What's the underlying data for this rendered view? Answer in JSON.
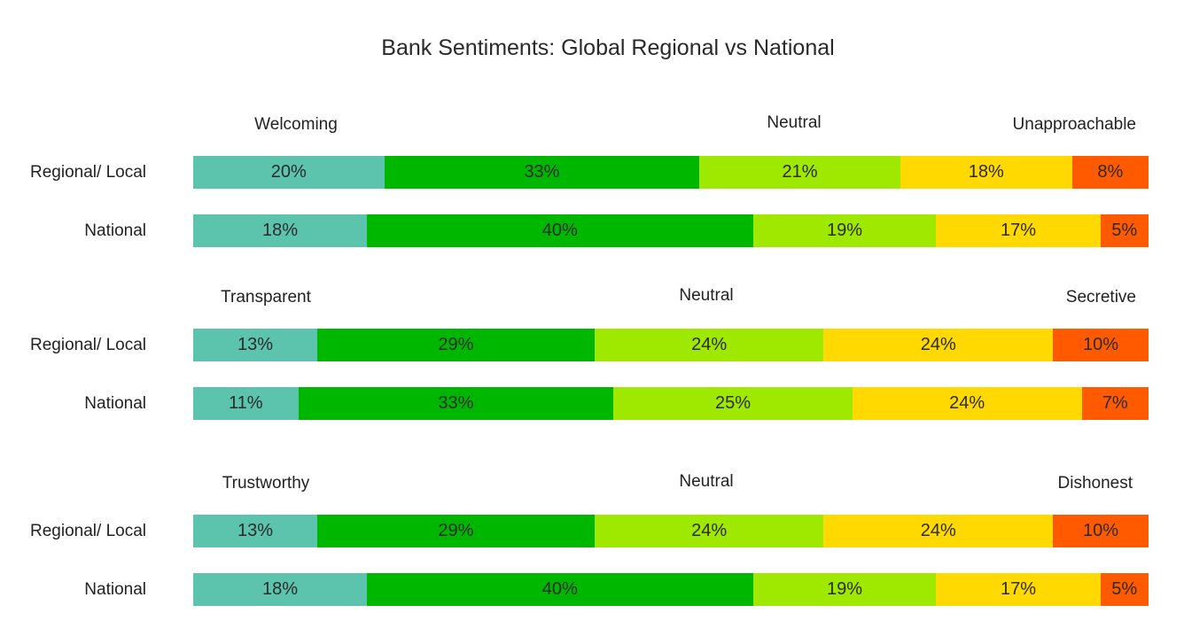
{
  "chart_data": {
    "type": "bar",
    "orientation": "horizontal",
    "stacked": true,
    "normalized": true,
    "title": "Bank Sentiments: Global Regional vs National",
    "colors": [
      "#5cc3ac",
      "#00b700",
      "#9fe800",
      "#ffd900",
      "#ff5a00"
    ],
    "panels": [
      {
        "scale_labels": {
          "left": "Welcoming",
          "middle": "Neutral",
          "right": "Unapproachable"
        },
        "rows": [
          {
            "label": "Regional/ Local",
            "values": [
              20,
              33,
              21,
              18,
              8
            ],
            "labels": [
              "20%",
              "33%",
              "21%",
              "18%",
              "8%"
            ]
          },
          {
            "label": "National",
            "values": [
              18,
              40,
              19,
              17,
              5
            ],
            "labels": [
              "18%",
              "40%",
              "19%",
              "17%",
              "5%"
            ]
          }
        ]
      },
      {
        "scale_labels": {
          "left": "Transparent",
          "middle": "Neutral",
          "right": "Secretive"
        },
        "rows": [
          {
            "label": "Regional/ Local",
            "values": [
              13,
              29,
              24,
              24,
              10
            ],
            "labels": [
              "13%",
              "29%",
              "24%",
              "24%",
              "10%"
            ]
          },
          {
            "label": "National",
            "values": [
              11,
              33,
              25,
              24,
              7
            ],
            "labels": [
              "11%",
              "33%",
              "25%",
              "24%",
              "7%"
            ]
          }
        ]
      },
      {
        "scale_labels": {
          "left": "Trustworthy",
          "middle": "Neutral",
          "right": "Dishonest"
        },
        "rows": [
          {
            "label": "Regional/ Local",
            "values": [
              13,
              29,
              24,
              24,
              10
            ],
            "labels": [
              "13%",
              "29%",
              "24%",
              "24%",
              "10%"
            ]
          },
          {
            "label": "National",
            "values": [
              18,
              40,
              19,
              17,
              5
            ],
            "labels": [
              "18%",
              "40%",
              "19%",
              "17%",
              "5%"
            ]
          }
        ]
      }
    ]
  }
}
